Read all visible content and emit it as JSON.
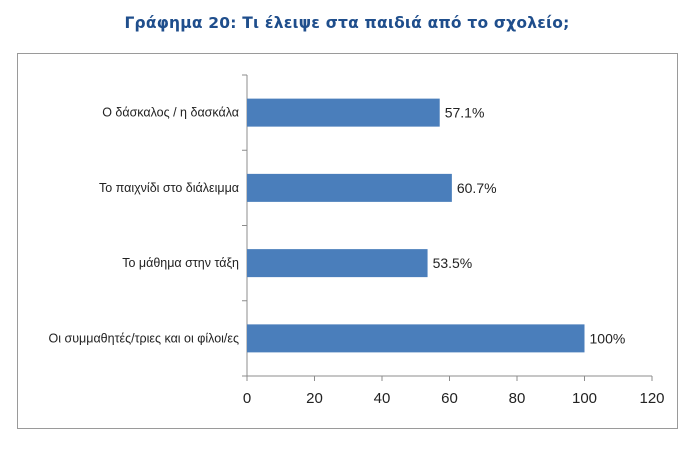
{
  "chart_data": {
    "type": "bar",
    "orientation": "horizontal",
    "title": "Γράφημα 20: Τι έλειψε στα παιδιά από το σχολείο;",
    "categories": [
      "Ο δάσκαλος / η δασκάλα",
      "Το παιχνίδι στο διάλειμμα",
      "Το μάθημα στην τάξη",
      "Οι συμμαθητές/τριες και οι φίλοι/ες"
    ],
    "values": [
      57.1,
      60.7,
      53.5,
      100
    ],
    "data_labels": [
      "57.1%",
      "60.7%",
      "53.5%",
      "100%"
    ],
    "xlim": [
      0,
      120
    ],
    "xticks": [
      "0",
      "20",
      "40",
      "60",
      "80",
      "100",
      "120"
    ],
    "xlabel": "",
    "ylabel": "",
    "grid": false,
    "legend": "none",
    "bar_color": "#4a7ebb",
    "title_color": "#1f4e8c"
  }
}
